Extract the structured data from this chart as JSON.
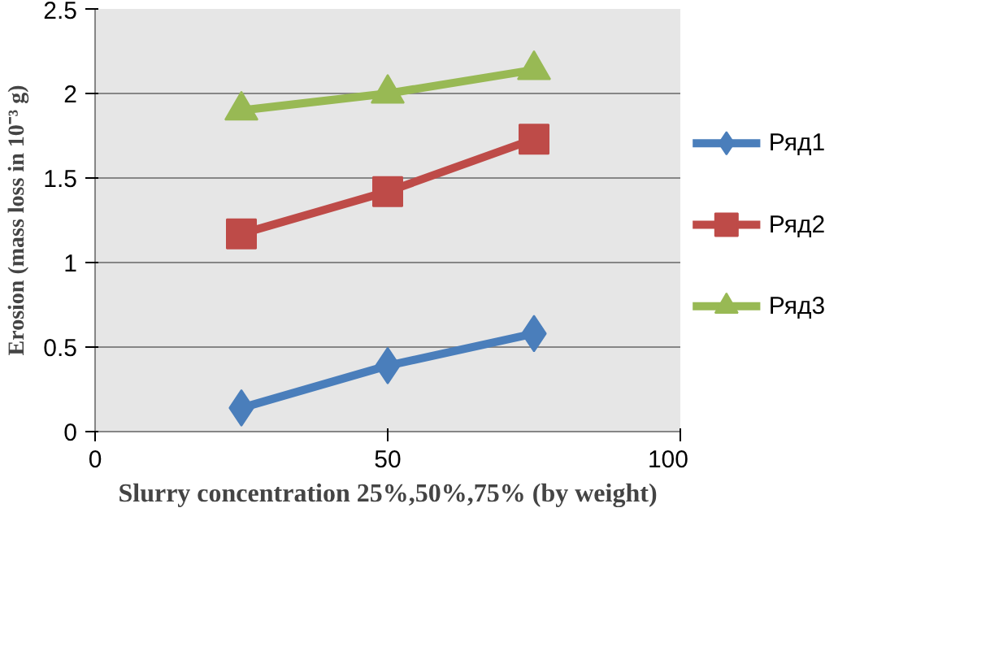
{
  "chart_data": {
    "type": "line",
    "xlabel": "Slurry concentration 25%,50%,75% (by weight)",
    "ylabel": "Erosion (mass loss in 10⁻³ g)",
    "x": [
      25,
      50,
      75
    ],
    "series": [
      {
        "name": "Ряд1",
        "color": "#4a7ebb",
        "marker": "diamond",
        "values": [
          0.14,
          0.39,
          0.58
        ]
      },
      {
        "name": "Ряд2",
        "color": "#be4b48",
        "marker": "square",
        "values": [
          1.17,
          1.42,
          1.73
        ]
      },
      {
        "name": "Ряд3",
        "color": "#98b954",
        "marker": "triangle",
        "values": [
          1.9,
          2.0,
          2.14
        ]
      }
    ],
    "xlim": [
      0,
      100
    ],
    "xticks": [
      0,
      50,
      100
    ],
    "ylim": [
      0,
      2.5
    ],
    "yticks": [
      0,
      0.5,
      1,
      1.5,
      2,
      2.5
    ],
    "grid": "y",
    "legend": "right",
    "line_style": "solid"
  }
}
